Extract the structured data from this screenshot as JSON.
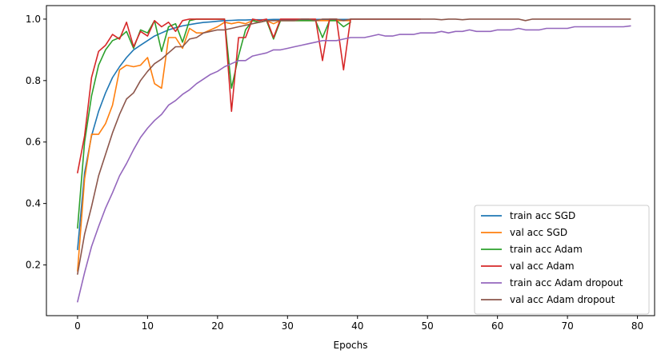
{
  "chart_data": {
    "type": "line",
    "title": "",
    "xlabel": "Epochs",
    "ylabel": "",
    "xlim": [
      -4.45,
      82.45
    ],
    "ylim": [
      0.035,
      1.044
    ],
    "xticks": [
      0,
      10,
      20,
      30,
      40,
      50,
      60,
      70,
      80
    ],
    "yticks": [
      0.2,
      0.4,
      0.6,
      0.8,
      1.0
    ],
    "xtick_labels": [
      "0",
      "10",
      "20",
      "30",
      "40",
      "50",
      "60",
      "70",
      "80"
    ],
    "ytick_labels": [
      "0.2",
      "0.4",
      "0.6",
      "0.8",
      "1.0"
    ],
    "grid": false,
    "legend_position": "lower right",
    "series": [
      {
        "name": "train acc SGD",
        "color": "#1f77b4",
        "x": [
          0,
          1,
          2,
          3,
          4,
          5,
          6,
          7,
          8,
          9,
          10,
          11,
          12,
          13,
          14,
          15,
          16,
          17,
          18,
          19,
          20,
          21,
          22,
          23,
          24,
          25,
          26,
          27,
          28,
          29,
          30,
          31,
          32,
          33,
          34,
          35,
          36,
          37,
          38,
          39
        ],
        "values": [
          0.25,
          0.5,
          0.62,
          0.7,
          0.76,
          0.81,
          0.845,
          0.875,
          0.9,
          0.915,
          0.93,
          0.945,
          0.955,
          0.965,
          0.972,
          0.978,
          0.982,
          0.986,
          0.989,
          0.991,
          0.993,
          0.995,
          0.996,
          0.997,
          0.997,
          0.998,
          0.998,
          0.998,
          0.999,
          0.999,
          0.999,
          0.999,
          0.999,
          0.999,
          0.999,
          0.999,
          0.999,
          0.999,
          0.999,
          0.999
        ]
      },
      {
        "name": "val acc SGD",
        "color": "#ff7f0e",
        "x": [
          0,
          1,
          2,
          3,
          4,
          5,
          6,
          7,
          8,
          9,
          10,
          11,
          12,
          13,
          14,
          15,
          16,
          17,
          18,
          19,
          20,
          21,
          22,
          23,
          24,
          25,
          26,
          27,
          28,
          29,
          30,
          31,
          32,
          33,
          34,
          35,
          36,
          37,
          38,
          39
        ],
        "values": [
          0.18,
          0.48,
          0.625,
          0.625,
          0.66,
          0.72,
          0.835,
          0.85,
          0.845,
          0.85,
          0.875,
          0.79,
          0.775,
          0.94,
          0.94,
          0.905,
          0.97,
          0.955,
          0.955,
          0.965,
          0.975,
          0.99,
          0.985,
          0.99,
          0.985,
          0.995,
          0.99,
          0.995,
          0.985,
          0.995,
          0.995,
          0.995,
          0.995,
          0.995,
          0.995,
          0.995,
          0.995,
          0.995,
          0.995,
          0.995
        ]
      },
      {
        "name": "train acc Adam",
        "color": "#2ca02c",
        "x": [
          0,
          1,
          2,
          3,
          4,
          5,
          6,
          7,
          8,
          9,
          10,
          11,
          12,
          13,
          14,
          15,
          16,
          17,
          18,
          19,
          20,
          21,
          22,
          23,
          24,
          25,
          26,
          27,
          28,
          29,
          30,
          31,
          32,
          33,
          34,
          35,
          36,
          37,
          38,
          39
        ],
        "values": [
          0.32,
          0.6,
          0.75,
          0.85,
          0.9,
          0.93,
          0.94,
          0.96,
          0.905,
          0.965,
          0.955,
          0.995,
          0.895,
          0.975,
          0.985,
          0.925,
          0.995,
          1.0,
          1.0,
          1.0,
          1.0,
          1.0,
          0.775,
          0.88,
          0.965,
          0.995,
          0.99,
          0.995,
          0.935,
          0.995,
          0.995,
          0.995,
          0.995,
          0.995,
          0.995,
          0.94,
          0.995,
          0.995,
          0.975,
          0.99
        ]
      },
      {
        "name": "val acc Adam",
        "color": "#d62728",
        "x": [
          0,
          1,
          2,
          3,
          4,
          5,
          6,
          7,
          8,
          9,
          10,
          11,
          12,
          13,
          14,
          15,
          16,
          17,
          18,
          19,
          20,
          21,
          22,
          23,
          24,
          25,
          26,
          27,
          28,
          29,
          30,
          31,
          32,
          33,
          34,
          35,
          36,
          37,
          38,
          39,
          40,
          41,
          42,
          43,
          44,
          45,
          46,
          47,
          48,
          49
        ],
        "values": [
          0.5,
          0.62,
          0.81,
          0.895,
          0.915,
          0.95,
          0.935,
          0.99,
          0.91,
          0.96,
          0.945,
          0.995,
          0.975,
          0.99,
          0.96,
          0.995,
          1.0,
          1.0,
          1.0,
          1.0,
          1.0,
          1.0,
          0.7,
          0.94,
          0.94,
          1.0,
          0.995,
          1.0,
          0.94,
          1.0,
          1.0,
          1.0,
          1.0,
          1.0,
          1.0,
          0.865,
          1.0,
          1.0,
          0.835,
          1.0,
          1.0,
          1.0,
          1.0,
          1.0,
          1.0,
          1.0,
          1.0,
          1.0,
          1.0,
          1.0
        ]
      },
      {
        "name": "train acc Adam dropout",
        "color": "#9467bd",
        "x": [
          0,
          1,
          2,
          3,
          4,
          5,
          6,
          7,
          8,
          9,
          10,
          11,
          12,
          13,
          14,
          15,
          16,
          17,
          18,
          19,
          20,
          21,
          22,
          23,
          24,
          25,
          26,
          27,
          28,
          29,
          30,
          31,
          32,
          33,
          34,
          35,
          36,
          37,
          38,
          39,
          40,
          41,
          42,
          43,
          44,
          45,
          46,
          47,
          48,
          49,
          50,
          51,
          52,
          53,
          54,
          55,
          56,
          57,
          58,
          59,
          60,
          61,
          62,
          63,
          64,
          65,
          66,
          67,
          68,
          69,
          70,
          71,
          72,
          73,
          74,
          75,
          76,
          77,
          78,
          79
        ],
        "values": [
          0.08,
          0.175,
          0.26,
          0.325,
          0.385,
          0.435,
          0.49,
          0.53,
          0.575,
          0.615,
          0.645,
          0.67,
          0.69,
          0.72,
          0.735,
          0.755,
          0.77,
          0.79,
          0.805,
          0.82,
          0.83,
          0.845,
          0.855,
          0.865,
          0.865,
          0.88,
          0.885,
          0.89,
          0.9,
          0.9,
          0.905,
          0.91,
          0.915,
          0.92,
          0.925,
          0.93,
          0.93,
          0.93,
          0.935,
          0.94,
          0.94,
          0.94,
          0.945,
          0.95,
          0.945,
          0.945,
          0.95,
          0.95,
          0.95,
          0.955,
          0.955,
          0.955,
          0.96,
          0.955,
          0.96,
          0.96,
          0.965,
          0.96,
          0.96,
          0.96,
          0.965,
          0.965,
          0.965,
          0.97,
          0.965,
          0.965,
          0.965,
          0.97,
          0.97,
          0.97,
          0.97,
          0.975,
          0.975,
          0.975,
          0.975,
          0.975,
          0.975,
          0.975,
          0.975,
          0.978
        ]
      },
      {
        "name": "val acc Adam dropout",
        "color": "#8c564b",
        "x": [
          0,
          1,
          2,
          3,
          4,
          5,
          6,
          7,
          8,
          9,
          10,
          11,
          12,
          13,
          14,
          15,
          16,
          17,
          18,
          19,
          20,
          21,
          22,
          23,
          24,
          25,
          26,
          27,
          28,
          29,
          30,
          31,
          32,
          33,
          34,
          35,
          36,
          37,
          38,
          39,
          40,
          41,
          42,
          43,
          44,
          45,
          46,
          47,
          48,
          49,
          50,
          51,
          52,
          53,
          54,
          55,
          56,
          57,
          58,
          59,
          60,
          61,
          62,
          63,
          64,
          65,
          66,
          67,
          68,
          69,
          70,
          71,
          72,
          73,
          74,
          75,
          76,
          77,
          78,
          79
        ],
        "values": [
          0.17,
          0.3,
          0.39,
          0.49,
          0.56,
          0.63,
          0.69,
          0.74,
          0.76,
          0.8,
          0.83,
          0.855,
          0.87,
          0.89,
          0.91,
          0.91,
          0.935,
          0.94,
          0.955,
          0.96,
          0.965,
          0.965,
          0.97,
          0.975,
          0.98,
          0.985,
          0.99,
          0.995,
          0.995,
          0.995,
          0.995,
          0.995,
          1.0,
          1.0,
          0.995,
          1.0,
          1.0,
          1.0,
          0.995,
          1.0,
          1.0,
          1.0,
          1.0,
          1.0,
          1.0,
          1.0,
          1.0,
          1.0,
          1.0,
          1.0,
          1.0,
          1.0,
          0.998,
          1.0,
          1.0,
          0.998,
          1.0,
          1.0,
          1.0,
          1.0,
          1.0,
          1.0,
          1.0,
          1.0,
          0.995,
          1.0,
          1.0,
          1.0,
          1.0,
          1.0,
          1.0,
          1.0,
          1.0,
          1.0,
          1.0,
          1.0,
          1.0,
          1.0,
          1.0,
          1.0
        ]
      }
    ]
  }
}
